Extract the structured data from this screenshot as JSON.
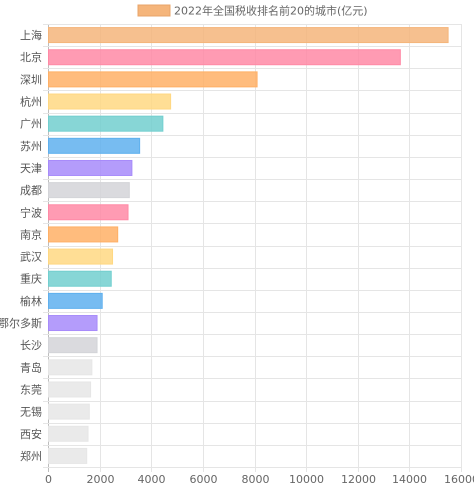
{
  "chart_data": {
    "type": "bar",
    "orientation": "horizontal",
    "legend": {
      "label": "2022年全国税收排名前20的城市(亿元)",
      "placement": "top-center",
      "swatch_fill": "#f5b57b",
      "swatch_stroke": "#e8a46a"
    },
    "categories": [
      "上海",
      "北京",
      "深圳",
      "杭州",
      "广州",
      "苏州",
      "天津",
      "成都",
      "宁波",
      "南京",
      "武汉",
      "重庆",
      "榆林",
      "鄂尔多斯",
      "长沙",
      "青岛",
      "东莞",
      "无锡",
      "西安",
      "郑州"
    ],
    "values": [
      15500,
      13650,
      8100,
      4750,
      4450,
      3550,
      3250,
      3150,
      3100,
      2700,
      2500,
      2450,
      2100,
      1900,
      1900,
      1700,
      1650,
      1600,
      1550,
      1500
    ],
    "colors": [
      "#f5b57b",
      "#ff8aa6",
      "#ffb066",
      "#ffd882",
      "#72cfcf",
      "#5fb0ee",
      "#a78bfa",
      "#d3d4d8",
      "#ff8aa6",
      "#ffb066",
      "#ffd882",
      "#72cfcf",
      "#5fb0ee",
      "#a78bfa",
      "#d3d4d8",
      "#e6e6e6",
      "#e6e6e6",
      "#e6e6e6",
      "#e6e6e6",
      "#e6e6e6"
    ],
    "x_ticks": [
      0,
      2000,
      4000,
      6000,
      8000,
      10000,
      12000,
      14000,
      16000
    ],
    "xlim": [
      0,
      16000
    ],
    "grid": true
  }
}
